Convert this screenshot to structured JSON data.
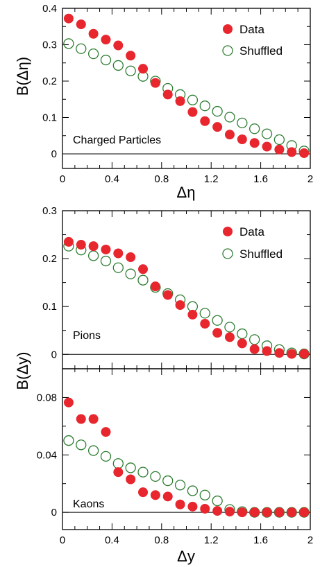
{
  "colors": {
    "data": "#e8262e",
    "shuffled": "#2e7d32",
    "axis": "#000000"
  },
  "legend": {
    "data_label": "Data",
    "shuffled_label": "Shuffled"
  },
  "chart_data": [
    {
      "type": "scatter",
      "panel_label": "Charged Particles",
      "xlabel": "Δη",
      "ylabel": "B(Δη)",
      "xlim": [
        0,
        2
      ],
      "ylim": [
        -0.04,
        0.4
      ],
      "xticks": [
        {
          "v": 0,
          "label": "0"
        },
        {
          "v": 0.4,
          "label": "0.4"
        },
        {
          "v": 0.8,
          "label": "0.8"
        },
        {
          "v": 1.2,
          "label": "1.2"
        },
        {
          "v": 1.6,
          "label": "1.6"
        },
        {
          "v": 2,
          "label": "2"
        }
      ],
      "yticks": [
        {
          "v": 0,
          "label": "0"
        },
        {
          "v": 0.1,
          "label": "0.1"
        },
        {
          "v": 0.2,
          "label": "0.2"
        },
        {
          "v": 0.3,
          "label": "0.3"
        },
        {
          "v": 0.4,
          "label": "0.4"
        }
      ],
      "x": [
        0.05,
        0.15,
        0.25,
        0.35,
        0.45,
        0.55,
        0.65,
        0.75,
        0.85,
        0.95,
        1.05,
        1.15,
        1.25,
        1.35,
        1.45,
        1.55,
        1.65,
        1.75,
        1.85,
        1.95
      ],
      "series": [
        {
          "name": "Data",
          "marker": "filled",
          "values": [
            0.372,
            0.356,
            0.33,
            0.314,
            0.298,
            0.27,
            0.234,
            0.195,
            0.163,
            0.145,
            0.115,
            0.09,
            0.074,
            0.053,
            0.04,
            0.03,
            0.02,
            0.012,
            0.005,
            0.002
          ]
        },
        {
          "name": "Shuffled",
          "marker": "open",
          "values": [
            0.303,
            0.289,
            0.275,
            0.258,
            0.243,
            0.228,
            0.213,
            0.2,
            0.18,
            0.163,
            0.148,
            0.132,
            0.117,
            0.101,
            0.085,
            0.069,
            0.055,
            0.039,
            0.023,
            0.008
          ]
        }
      ]
    },
    {
      "type": "scatter",
      "panel_label": "Pions",
      "xlabel": "",
      "ylabel": "B(Δy)",
      "xlim": [
        0,
        2
      ],
      "ylim": [
        -0.03,
        0.3
      ],
      "xticks": [
        {
          "v": 0,
          "label": ""
        },
        {
          "v": 0.4,
          "label": ""
        },
        {
          "v": 0.8,
          "label": ""
        },
        {
          "v": 1.2,
          "label": ""
        },
        {
          "v": 1.6,
          "label": ""
        },
        {
          "v": 2,
          "label": ""
        }
      ],
      "yticks": [
        {
          "v": 0,
          "label": "0"
        },
        {
          "v": 0.1,
          "label": "0.1"
        },
        {
          "v": 0.2,
          "label": "0.2"
        },
        {
          "v": 0.3,
          "label": "0.3"
        }
      ],
      "x": [
        0.05,
        0.15,
        0.25,
        0.35,
        0.45,
        0.55,
        0.65,
        0.75,
        0.85,
        0.95,
        1.05,
        1.15,
        1.25,
        1.35,
        1.45,
        1.55,
        1.65,
        1.75,
        1.85,
        1.95
      ],
      "series": [
        {
          "name": "Data",
          "marker": "filled",
          "values": [
            0.235,
            0.229,
            0.226,
            0.219,
            0.211,
            0.203,
            0.178,
            0.142,
            0.124,
            0.103,
            0.083,
            0.064,
            0.045,
            0.036,
            0.023,
            0.011,
            0.007,
            0.003,
            0.001,
            0.001
          ]
        },
        {
          "name": "Shuffled",
          "marker": "open",
          "values": [
            0.226,
            0.218,
            0.206,
            0.195,
            0.181,
            0.168,
            0.155,
            0.14,
            0.127,
            0.114,
            0.1,
            0.086,
            0.071,
            0.057,
            0.043,
            0.031,
            0.018,
            0.01,
            0.003,
            0.001
          ]
        }
      ]
    },
    {
      "type": "scatter",
      "panel_label": "Kaons",
      "xlabel": "Δy",
      "ylabel": "",
      "xlim": [
        0,
        2
      ],
      "ylim": [
        -0.012,
        0.1
      ],
      "xticks": [
        {
          "v": 0,
          "label": "0"
        },
        {
          "v": 0.4,
          "label": "0.4"
        },
        {
          "v": 0.8,
          "label": "0.8"
        },
        {
          "v": 1.2,
          "label": "1.2"
        },
        {
          "v": 1.6,
          "label": "1.6"
        },
        {
          "v": 2,
          "label": "2"
        }
      ],
      "yticks": [
        {
          "v": 0,
          "label": "0"
        },
        {
          "v": 0.04,
          "label": "0.04"
        },
        {
          "v": 0.08,
          "label": "0.08"
        }
      ],
      "x": [
        0.05,
        0.15,
        0.25,
        0.35,
        0.45,
        0.55,
        0.65,
        0.75,
        0.85,
        0.95,
        1.05,
        1.15,
        1.25,
        1.35,
        1.45,
        1.55,
        1.65,
        1.75,
        1.85,
        1.95
      ],
      "series": [
        {
          "name": "Data",
          "marker": "filled",
          "values": [
            0.0765,
            0.065,
            0.065,
            0.056,
            0.028,
            0.023,
            0.014,
            0.012,
            0.011,
            0.0055,
            0.004,
            0.0025,
            0.001,
            0.0005,
            0.0,
            0.0,
            0.0,
            0.0,
            0.0,
            0.0
          ]
        },
        {
          "name": "Shuffled",
          "marker": "open",
          "values": [
            0.05,
            0.047,
            0.043,
            0.039,
            0.034,
            0.031,
            0.028,
            0.025,
            0.022,
            0.019,
            0.015,
            0.012,
            0.008,
            0.002,
            0.0005,
            0.0,
            0.0,
            0.0,
            0.0,
            0.0
          ]
        }
      ]
    }
  ]
}
